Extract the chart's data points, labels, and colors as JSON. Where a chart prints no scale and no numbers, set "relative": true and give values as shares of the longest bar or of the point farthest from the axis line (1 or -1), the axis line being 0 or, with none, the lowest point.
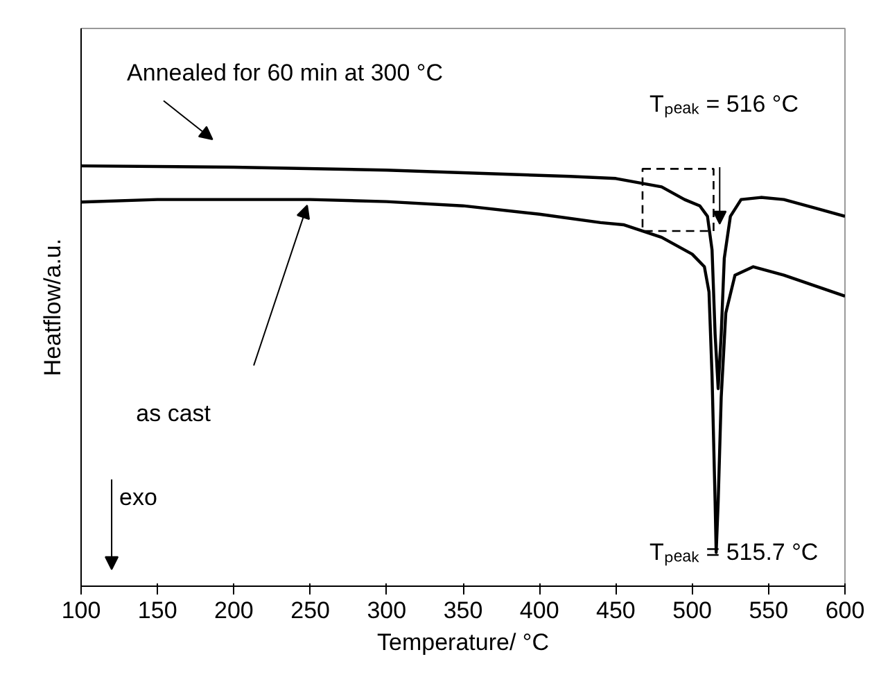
{
  "chart_data": {
    "type": "line",
    "relative": true,
    "xlabel": "Temperature/ °C",
    "ylabel": "Heatflow/a.u.",
    "xlim": [
      100,
      600
    ],
    "xticks": [
      100,
      150,
      200,
      250,
      300,
      350,
      400,
      450,
      500,
      550,
      600
    ],
    "tick_labels": "x",
    "grid": false,
    "marker": "none",
    "line_style": "solid",
    "annotations": [
      "Annealed for 60 min at 300 °C",
      "Tₚₑₐₖ = 516 °C",
      "as cast",
      "exo",
      "Tₚₑₐₖ = 515.7 °C"
    ],
    "series": [
      {
        "color": "#000000",
        "x": [
          100,
          200,
          300,
          380,
          420,
          450,
          480,
          495,
          505,
          510,
          513,
          515,
          517,
          519,
          521,
          525,
          532,
          545,
          560,
          580,
          600
        ],
        "values": [
          1.0,
          0.997,
          0.99,
          0.98,
          0.975,
          0.97,
          0.95,
          0.92,
          0.905,
          0.88,
          0.8,
          0.6,
          0.47,
          0.6,
          0.78,
          0.88,
          0.92,
          0.925,
          0.92,
          0.9,
          0.88
        ]
      },
      {
        "color": "#000000",
        "x": [
          100,
          150,
          250,
          300,
          350,
          400,
          440,
          455,
          480,
          500,
          508,
          511,
          513,
          515,
          515.7,
          517,
          519,
          522,
          528,
          540,
          560,
          600
        ],
        "values": [
          0.914,
          0.92,
          0.92,
          0.915,
          0.905,
          0.885,
          0.865,
          0.86,
          0.83,
          0.79,
          0.76,
          0.7,
          0.5,
          0.2,
          0.08,
          0.2,
          0.45,
          0.65,
          0.74,
          0.76,
          0.74,
          0.69
        ]
      }
    ]
  }
}
